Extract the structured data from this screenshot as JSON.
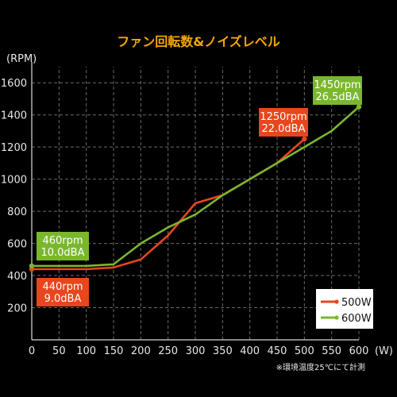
{
  "chart_data": {
    "type": "line",
    "title": "ファン回転数&ノイズレベル",
    "ylabel": "(RPM)",
    "xlabel": "(W)",
    "xlim": [
      0,
      600
    ],
    "ylim": [
      0,
      1700
    ],
    "x_ticks": [
      0,
      50,
      100,
      150,
      200,
      250,
      300,
      350,
      400,
      450,
      500,
      550,
      600
    ],
    "y_ticks": [
      200,
      400,
      600,
      800,
      1000,
      1200,
      1400,
      1600
    ],
    "grid": true,
    "legend_position": "bottom-right",
    "series": [
      {
        "name": "500W",
        "color": "#e8461e",
        "x": [
          0,
          50,
          100,
          150,
          200,
          250,
          300,
          350,
          400,
          450,
          500
        ],
        "y": [
          440,
          440,
          440,
          450,
          500,
          650,
          850,
          900,
          1000,
          1100,
          1250
        ]
      },
      {
        "name": "600W",
        "color": "#7ab72e",
        "x": [
          0,
          50,
          100,
          150,
          200,
          250,
          300,
          350,
          400,
          450,
          500,
          550,
          600
        ],
        "y": [
          460,
          460,
          460,
          470,
          600,
          700,
          780,
          900,
          1000,
          1100,
          1200,
          1300,
          1450
        ]
      }
    ],
    "callouts": [
      {
        "series": "600W",
        "line1": "460rpm",
        "line2": "10.0dBA",
        "color": "#7ab72e"
      },
      {
        "series": "500W",
        "line1": "440rpm",
        "line2": "9.0dBA",
        "color": "#e8461e"
      },
      {
        "series": "500W",
        "line1": "1250rpm",
        "line2": "22.0dBA",
        "color": "#e8461e"
      },
      {
        "series": "600W",
        "line1": "1450rpm",
        "line2": "26.5dBA",
        "color": "#7ab72e"
      }
    ],
    "note": "※環境温度25℃にて計測"
  }
}
